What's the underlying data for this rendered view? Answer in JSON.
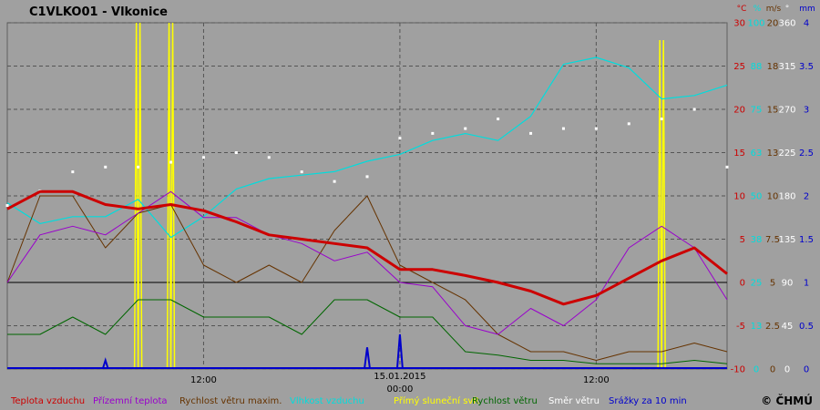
{
  "chart_data": {
    "type": "line",
    "title": "C1VLKO01 - Vlkonice",
    "copyright": "© ČHMÚ",
    "x_axis": {
      "range": [
        "2015-01-14T00:00",
        "2015-01-15T20:00"
      ],
      "tick_labels": [
        {
          "x": "2015-01-14T12:00",
          "label": "12:00"
        },
        {
          "x": "2015-01-15T00:00",
          "label": "00:00",
          "date_label": "15.01.2015"
        },
        {
          "x": "2015-01-15T12:00",
          "label": "12:00"
        }
      ]
    },
    "axes": [
      {
        "unit": "°C",
        "color": "#cc0000",
        "ticks": [
          "30",
          "25",
          "20",
          "15",
          "10",
          "5",
          "0",
          "-5",
          "-10"
        ],
        "ylim": [
          -10,
          30
        ]
      },
      {
        "unit": "%",
        "color": "#00dddd",
        "ticks": [
          "100",
          "88",
          "75",
          "63",
          "50",
          "38",
          "25",
          "13",
          "0"
        ],
        "ylim": [
          0,
          100
        ]
      },
      {
        "unit": "m/s",
        "color": "#663300",
        "ticks": [
          "20",
          "18",
          "15",
          "13",
          "10",
          "7.5",
          "5",
          "2.5",
          "0"
        ],
        "ylim": [
          0,
          20
        ]
      },
      {
        "unit": "°",
        "color": "#ffffff",
        "ticks": [
          "360",
          "315",
          "270",
          "225",
          "180",
          "135",
          "90",
          "45",
          "0"
        ],
        "ylim": [
          0,
          360
        ]
      },
      {
        "unit": "mm",
        "color": "#0000cc",
        "ticks": [
          "4",
          "3.5",
          "3",
          "2.5",
          "2",
          "1.5",
          "1",
          "0.5",
          "0"
        ],
        "ylim": [
          0,
          4
        ]
      }
    ],
    "legend": [
      {
        "name": "Teplota vzduchu",
        "color": "#cc0000"
      },
      {
        "name": "Přízemní teplota",
        "color": "#9900cc"
      },
      {
        "name": "Rychlost větru maxim.",
        "color": "#663300"
      },
      {
        "name": "Vlhkost vzduchu",
        "color": "#00dddd"
      },
      {
        "name": "Přímý sluneční svit",
        "color": "#ffff00"
      },
      {
        "name": "Rychlost větru",
        "color": "#006600"
      },
      {
        "name": "Směr větru",
        "color": "#ffffff"
      },
      {
        "name": "Srážky za 10 min",
        "color": "#0000cc"
      }
    ],
    "x_hours": [
      0,
      2,
      4,
      6,
      8,
      10,
      12,
      14,
      16,
      18,
      20,
      22,
      24,
      26,
      28,
      30,
      32,
      34,
      36,
      38,
      40,
      42,
      44
    ],
    "series": {
      "air_temp_c": [
        8.5,
        10.5,
        10.5,
        9,
        8.5,
        9,
        8.3,
        7,
        5.5,
        5,
        4.5,
        4,
        1.5,
        1.5,
        0.8,
        0,
        -1,
        -2.5,
        -1.5,
        0.5,
        2.5,
        4,
        1
      ],
      "ground_temp_c": [
        0,
        5.5,
        6.5,
        5.5,
        8,
        10.5,
        7.5,
        7.5,
        5.5,
        4.5,
        2.5,
        3.5,
        0,
        -0.5,
        -5,
        -6,
        -3,
        -5,
        -2,
        4,
        6.5,
        4,
        -2
      ],
      "humidity_pct": [
        48,
        42,
        44,
        44,
        49,
        38,
        44,
        52,
        55,
        56,
        57,
        60,
        62,
        66,
        68,
        66,
        73,
        88,
        90,
        87,
        78,
        79,
        82
      ],
      "wind_max_ms": [
        5,
        10,
        10,
        7,
        9,
        9.5,
        6,
        5,
        6,
        5,
        8,
        10,
        6,
        5,
        4,
        2,
        1,
        1,
        0.5,
        1,
        1,
        1.5,
        1
      ],
      "wind_ms": [
        2,
        2,
        3,
        2,
        4,
        4,
        3,
        3,
        3,
        2,
        4,
        4,
        3,
        3,
        1,
        0.8,
        0.5,
        0.5,
        0.3,
        0.3,
        0.3,
        0.5,
        0.3
      ],
      "wind_dir_deg": [
        170,
        185,
        205,
        210,
        210,
        215,
        220,
        225,
        220,
        205,
        195,
        200,
        240,
        245,
        250,
        260,
        245,
        250,
        250,
        255,
        260,
        270,
        210
      ],
      "sunshine_frac": [
        0,
        0,
        0,
        0,
        1,
        1,
        0,
        0,
        0,
        0,
        0,
        0,
        0,
        0,
        0,
        0,
        0,
        0,
        0,
        0,
        0.95,
        0,
        0
      ],
      "precip_mm": [
        0,
        0,
        0,
        0.1,
        0,
        0,
        0,
        0,
        0,
        0,
        0,
        0.25,
        0.4,
        0,
        0,
        0,
        0,
        0,
        0,
        0,
        0,
        0,
        0
      ]
    }
  }
}
